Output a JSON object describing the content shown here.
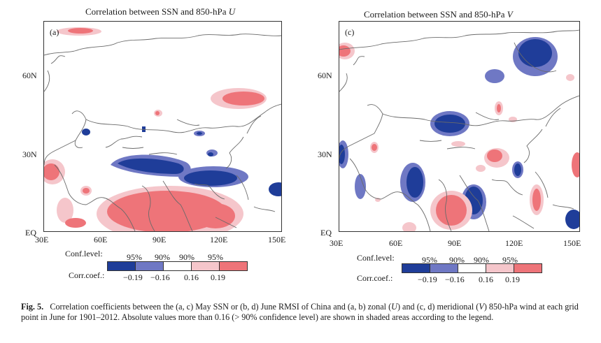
{
  "panels": [
    {
      "id": "a",
      "title_prefix": "Correlation between SSN and 850-hPa ",
      "title_var": "U",
      "label": "(a)",
      "y_ticks": [
        "60N",
        "30N",
        "EQ"
      ],
      "x_ticks": [
        "30E",
        "60E",
        "90E",
        "120E",
        "150E"
      ]
    },
    {
      "id": "c",
      "title_prefix": "Correlation between SSN and 850-hPa ",
      "title_var": "V",
      "label": "(c)",
      "y_ticks": [
        "60N",
        "30N",
        "EQ"
      ],
      "x_ticks": [
        "30E",
        "60E",
        "90E",
        "120E",
        "150E"
      ]
    }
  ],
  "legend": {
    "conf_label": "Conf.level:",
    "conf_values": [
      "95%",
      "90%",
      "90%",
      "95%"
    ],
    "coef_label": "Corr.coef.:",
    "coef_values": [
      "−0.19",
      "−0.16",
      "0.16",
      "0.19"
    ],
    "colors": [
      "#1f3d99",
      "#6f78c4",
      "#ffffff",
      "#f5c6cb",
      "#ee7479"
    ]
  },
  "caption": {
    "fig_label": "Fig. 5.",
    "part1": "Correlation coefficients between the (a, c) May SSN or (b, d) June RMSI of China and (a, b) zonal (",
    "var_u": "U",
    "part2": ") and (c, d) meridional (",
    "var_v": "V",
    "part3": ") 850-hPa wind at each grid point in June for 1901–2012. Absolute values more than 0.16 (> 90% confidence level) are shown in shaded areas according to the legend."
  }
}
